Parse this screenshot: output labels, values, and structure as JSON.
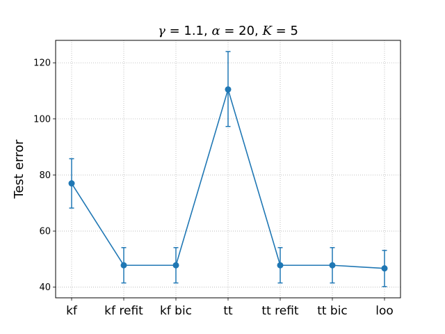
{
  "chart_data": {
    "type": "line",
    "title": {
      "gamma_symbol": "γ",
      "gamma_value": " = 1.1, ",
      "alpha_symbol": "α",
      "alpha_value": " = 20, ",
      "k_symbol": "K",
      "k_value": " = 5"
    },
    "xlabel": "",
    "ylabel": "Test error",
    "categories": [
      "kf",
      "kf refit",
      "kf bic",
      "tt",
      "tt refit",
      "tt bic",
      "loo"
    ],
    "series": [
      {
        "values": [
          77.0,
          47.8,
          47.8,
          110.5,
          47.8,
          47.8,
          46.7
        ],
        "error_low": [
          68.2,
          41.5,
          41.5,
          97.3,
          41.5,
          41.5,
          40.2
        ],
        "error_high": [
          85.8,
          54.1,
          54.1,
          124.0,
          54.1,
          54.1,
          53.1
        ],
        "color": "#1f77b4"
      }
    ],
    "ylim": [
      36.2,
      128.0
    ],
    "yticks": [
      40,
      60,
      80,
      100,
      120
    ],
    "grid": true
  }
}
